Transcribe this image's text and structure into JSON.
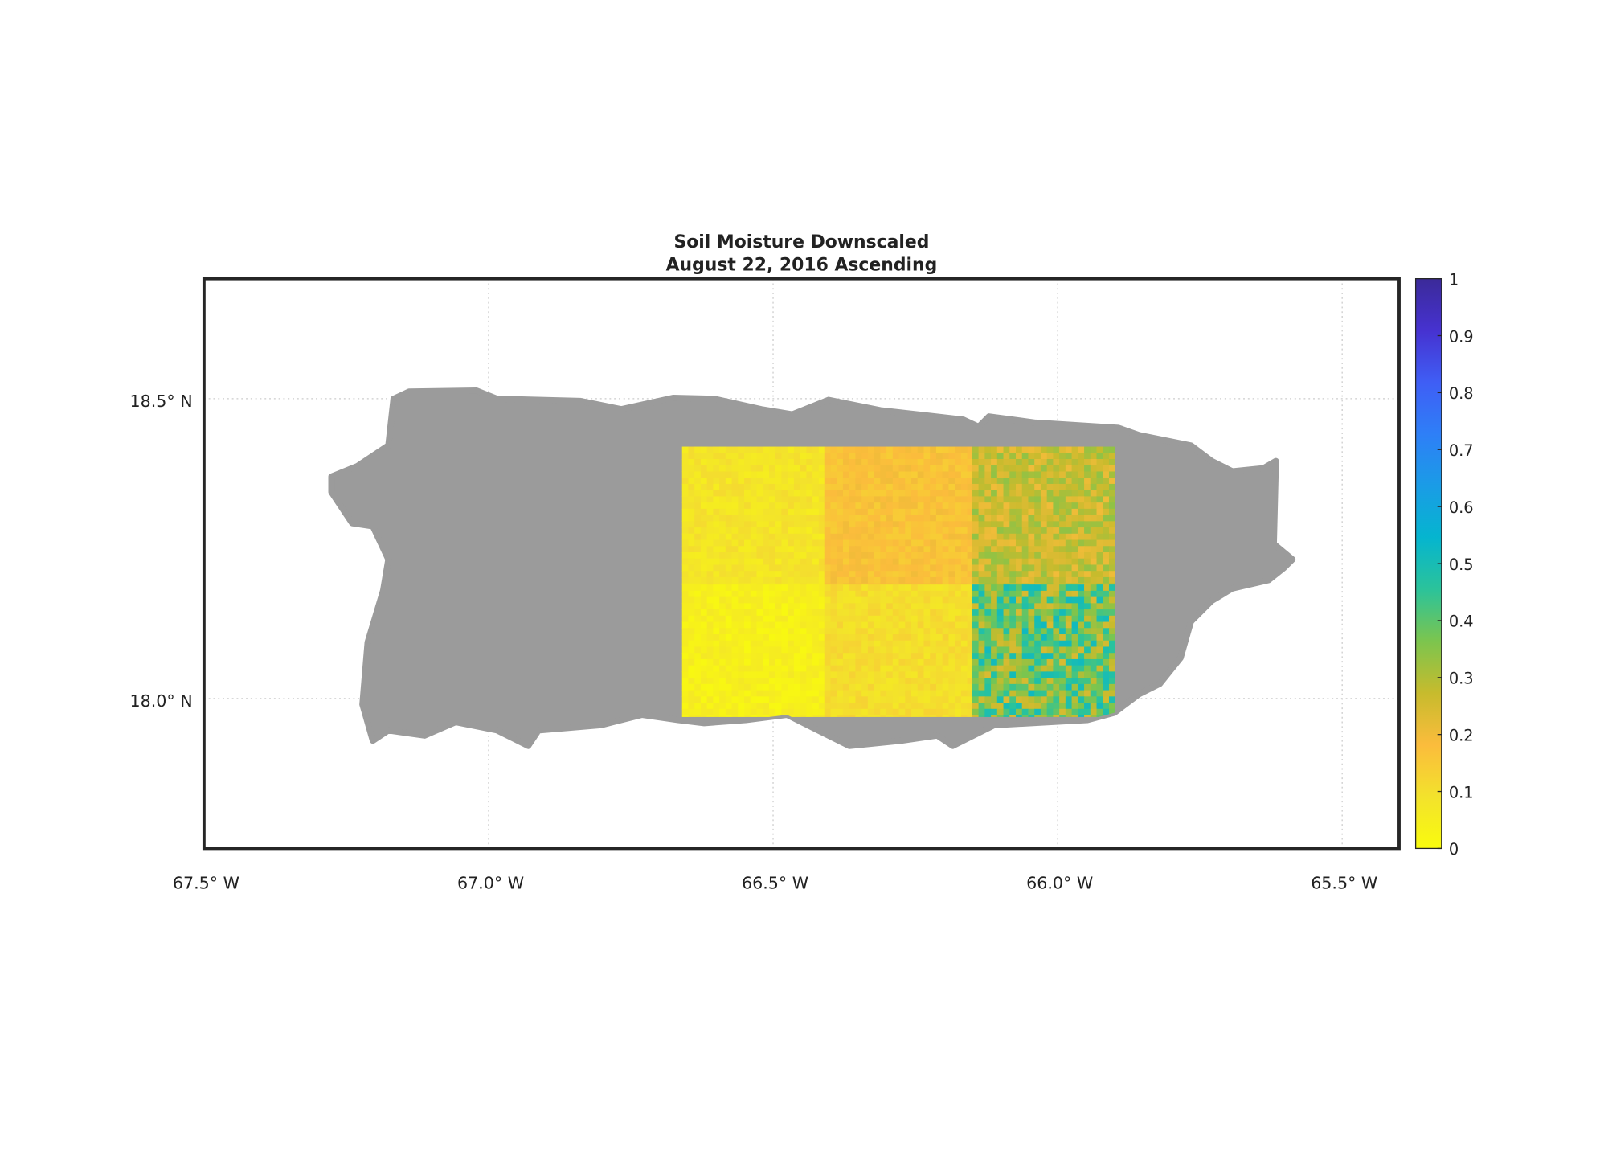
{
  "chart_data": {
    "type": "heatmap",
    "title": "Soil Moisture Downscaled",
    "subtitle": "August 22, 2016 Ascending",
    "xlabel": "",
    "ylabel": "",
    "xlim": [
      -67.5,
      -65.4
    ],
    "ylim": [
      17.75,
      18.7
    ],
    "x_ticks": [
      -67.5,
      -67.0,
      -66.5,
      -66.0,
      -65.5
    ],
    "x_tick_labels": [
      "67.5° W",
      "67.0° W",
      "66.5° W",
      "66.0° W",
      "65.5° W"
    ],
    "y_ticks": [
      18.0,
      18.5
    ],
    "y_tick_labels": [
      "18.0° N",
      "18.5° N"
    ],
    "grid": true,
    "land_color": "#9b9b9b",
    "colorbar": {
      "range": [
        0,
        1
      ],
      "ticks": [
        "0",
        "0.1",
        "0.2",
        "0.3",
        "0.4",
        "0.5",
        "0.6",
        "0.7",
        "0.8",
        "0.9",
        "1"
      ],
      "colors": [
        "#f9fb0e",
        "#f3e22c",
        "#fbbc3c",
        "#c7bb2d",
        "#7cc54e",
        "#2bc39a",
        "#05b5cf",
        "#1a9ce6",
        "#2e7ff7",
        "#3f5ef5",
        "#4632d0",
        "#3b2a99"
      ],
      "placement": "right"
    },
    "data_extent": {
      "lon": [
        -66.66,
        -65.9
      ],
      "lat": [
        17.97,
        18.42
      ]
    },
    "tiles": [
      {
        "lon": [
          -66.66,
          -66.41
        ],
        "lat": [
          18.19,
          18.42
        ],
        "mean_value": 0.08
      },
      {
        "lon": [
          -66.41,
          -66.15
        ],
        "lat": [
          18.19,
          18.42
        ],
        "mean_value": 0.17
      },
      {
        "lon": [
          -66.15,
          -65.9
        ],
        "lat": [
          18.19,
          18.42
        ],
        "mean_value": 0.27
      },
      {
        "lon": [
          -66.66,
          -66.41
        ],
        "lat": [
          17.97,
          18.19
        ],
        "mean_value": 0.04
      },
      {
        "lon": [
          -66.41,
          -66.15
        ],
        "lat": [
          17.97,
          18.19
        ],
        "mean_value": 0.1
      },
      {
        "lon": [
          -66.15,
          -65.9
        ],
        "lat": [
          17.97,
          18.19
        ],
        "mean_value": 0.38
      }
    ]
  }
}
